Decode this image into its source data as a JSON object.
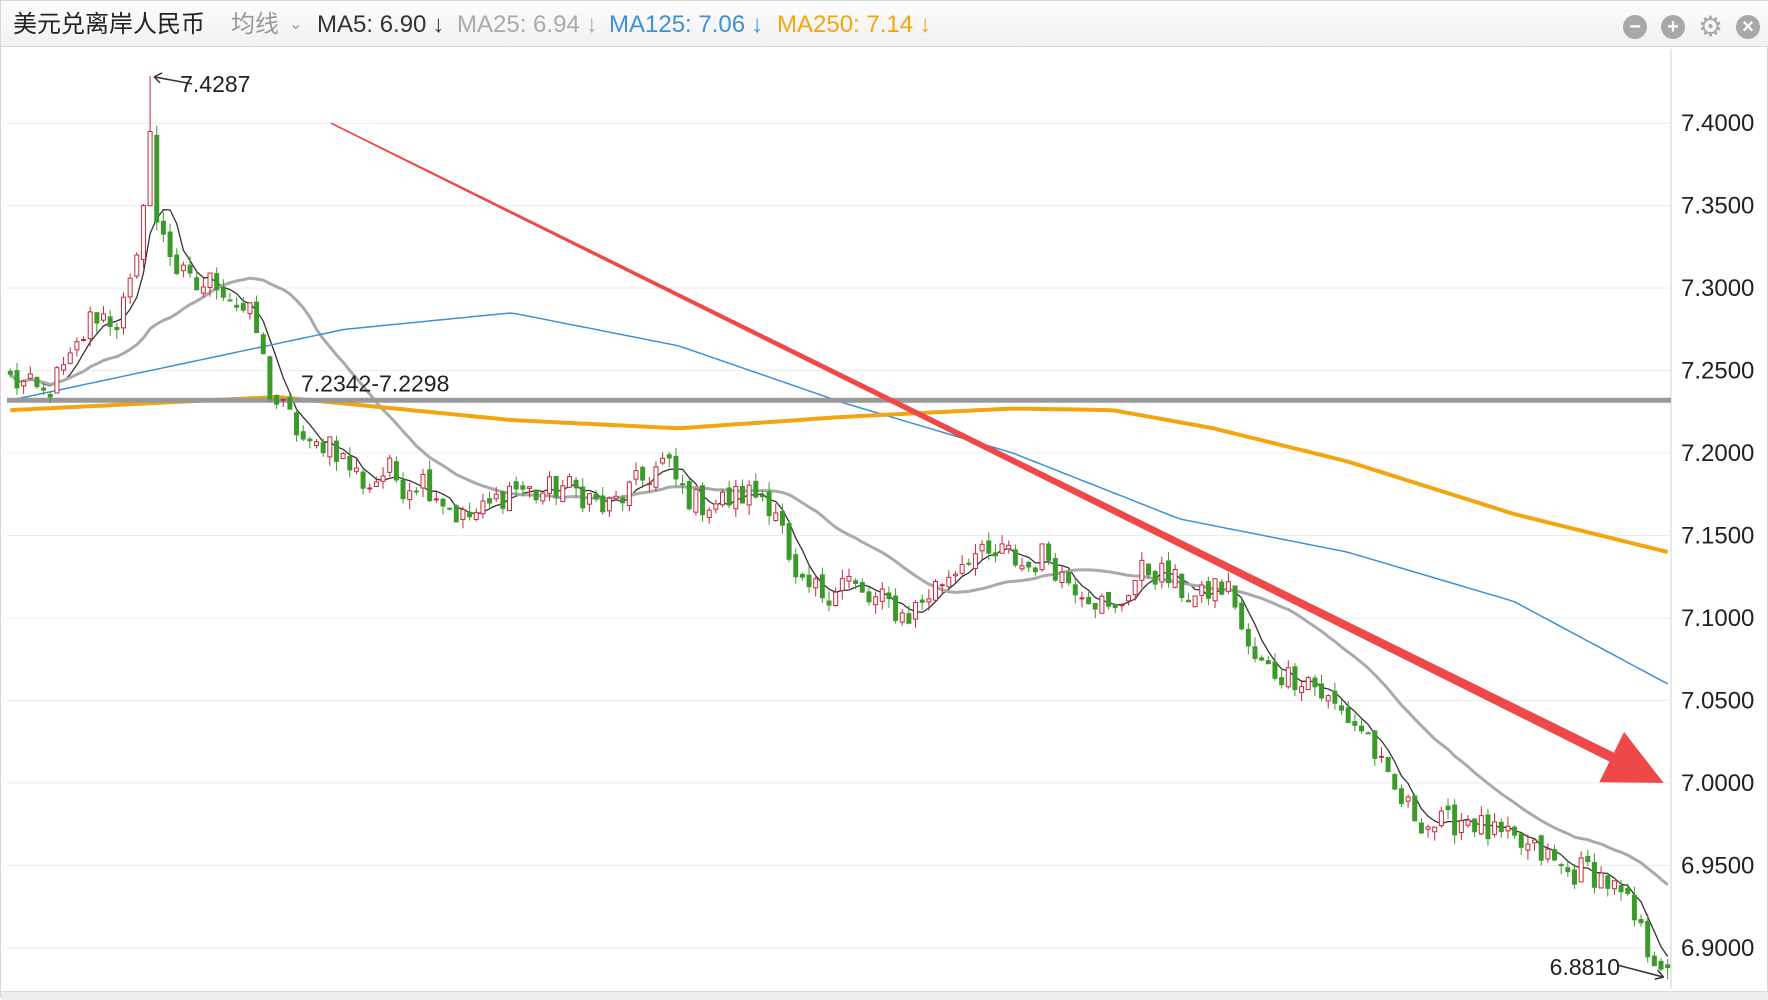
{
  "header": {
    "title": "美元兑离岸人民币",
    "indicator": "均线",
    "ma": [
      {
        "label": "MA5:",
        "value": "6.90",
        "arrow": "↓",
        "color": "#333333"
      },
      {
        "label": "MA25:",
        "value": "6.94",
        "arrow": "↓",
        "color": "#a9aaa9"
      },
      {
        "label": "MA125:",
        "value": "7.06",
        "arrow": "↓",
        "color": "#3f8fd6"
      },
      {
        "label": "MA250:",
        "value": "7.14",
        "arrow": "↓",
        "color": "#f3a50f"
      }
    ],
    "buttons": [
      {
        "name": "minimize",
        "glyph": "−"
      },
      {
        "name": "expand",
        "glyph": "+"
      },
      {
        "name": "settings",
        "glyph": "⚙"
      },
      {
        "name": "close",
        "glyph": "×"
      }
    ]
  },
  "chart_data": {
    "type": "candlestick",
    "title": "美元兑离岸人民币",
    "xlabel": "",
    "ylabel": "",
    "ylim": [
      6.875,
      7.445
    ],
    "y_ticks": [
      "7.4000",
      "7.3500",
      "7.3000",
      "7.2500",
      "7.2000",
      "7.1500",
      "7.1000",
      "7.0500",
      "7.0000",
      "6.9500",
      "6.9000"
    ],
    "y_tick_values": [
      7.4,
      7.35,
      7.3,
      7.25,
      7.2,
      7.15,
      7.1,
      7.05,
      7.0,
      6.95,
      6.9
    ],
    "grid": true,
    "y_axis_side": "right",
    "up_color": "#c8283c",
    "down_color": "#3c9a2a",
    "n_bars": 250,
    "close_anchors": [
      [
        0,
        7.245
      ],
      [
        10,
        7.235
      ],
      [
        18,
        7.255
      ],
      [
        25,
        7.285
      ],
      [
        32,
        7.28
      ],
      [
        36,
        7.3
      ],
      [
        40,
        7.33
      ],
      [
        42,
        7.39
      ],
      [
        45,
        7.34
      ],
      [
        50,
        7.31
      ],
      [
        55,
        7.3
      ],
      [
        62,
        7.305
      ],
      [
        68,
        7.29
      ],
      [
        73,
        7.28
      ],
      [
        78,
        7.235
      ],
      [
        84,
        7.22
      ],
      [
        90,
        7.2
      ],
      [
        95,
        7.21
      ],
      [
        100,
        7.195
      ],
      [
        107,
        7.18
      ],
      [
        113,
        7.19
      ],
      [
        118,
        7.18
      ],
      [
        123,
        7.185
      ],
      [
        128,
        7.175
      ],
      [
        135,
        7.16
      ],
      [
        142,
        7.165
      ],
      [
        150,
        7.18
      ],
      [
        158,
        7.175
      ],
      [
        165,
        7.18
      ],
      [
        172,
        7.175
      ],
      [
        178,
        7.165
      ],
      [
        184,
        7.175
      ],
      [
        190,
        7.185
      ],
      [
        196,
        7.195
      ],
      [
        200,
        7.18
      ],
      [
        205,
        7.17
      ],
      [
        212,
        7.17
      ],
      [
        220,
        7.175
      ],
      [
        225,
        7.175
      ],
      [
        230,
        7.165
      ],
      [
        233,
        7.13
      ],
      [
        236,
        7.115
      ],
      [
        240,
        7.118
      ],
      [
        244,
        7.115
      ],
      [
        250,
        7.125
      ],
      [
        256,
        7.11
      ],
      [
        262,
        7.11
      ],
      [
        268,
        7.1
      ],
      [
        275,
        7.115
      ],
      [
        280,
        7.125
      ],
      [
        287,
        7.14
      ],
      [
        292,
        7.135
      ],
      [
        298,
        7.14
      ],
      [
        304,
        7.13
      ],
      [
        310,
        7.14
      ],
      [
        315,
        7.125
      ],
      [
        320,
        7.12
      ],
      [
        326,
        7.11
      ],
      [
        330,
        7.1
      ],
      [
        335,
        7.12
      ],
      [
        340,
        7.13
      ],
      [
        346,
        7.125
      ],
      [
        352,
        7.115
      ],
      [
        356,
        7.11
      ],
      [
        360,
        7.12
      ],
      [
        366,
        7.115
      ],
      [
        370,
        7.08
      ],
      [
        375,
        7.07
      ],
      [
        382,
        7.065
      ],
      [
        388,
        7.065
      ],
      [
        394,
        7.05
      ],
      [
        400,
        7.04
      ],
      [
        406,
        7.03
      ],
      [
        412,
        7.0
      ],
      [
        418,
        6.985
      ],
      [
        424,
        6.975
      ],
      [
        430,
        6.975
      ],
      [
        436,
        6.98
      ],
      [
        442,
        6.97
      ],
      [
        448,
        6.965
      ],
      [
        454,
        6.96
      ],
      [
        460,
        6.955
      ],
      [
        466,
        6.945
      ],
      [
        472,
        6.948
      ],
      [
        478,
        6.94
      ],
      [
        484,
        6.925
      ],
      [
        490,
        6.9
      ],
      [
        496,
        6.888
      ]
    ],
    "annotations": [
      {
        "type": "high",
        "text": "7.4287",
        "value": 7.4287
      },
      {
        "type": "low",
        "text": "6.8810",
        "value": 6.881
      },
      {
        "type": "hline",
        "text": "7.2342-7.2298",
        "value": 7.232,
        "color": "#999999"
      }
    ],
    "ma_lines": [
      {
        "name": "MA5",
        "color": "#333333",
        "width": 1.3
      },
      {
        "name": "MA25",
        "color": "#a9aaa9",
        "width": 3
      },
      {
        "name": "MA125",
        "color": "#3f8fd6",
        "width": 1.5,
        "points": [
          [
            0,
            7.232
          ],
          [
            100,
            7.275
          ],
          [
            150,
            7.285
          ],
          [
            200,
            7.265
          ],
          [
            250,
            7.23
          ],
          [
            300,
            7.2
          ],
          [
            350,
            7.16
          ],
          [
            400,
            7.14
          ],
          [
            450,
            7.11
          ],
          [
            496,
            7.06
          ]
        ]
      },
      {
        "name": "MA250",
        "color": "#f3a50f",
        "width": 4,
        "points": [
          [
            0,
            7.226
          ],
          [
            80,
            7.234
          ],
          [
            150,
            7.22
          ],
          [
            200,
            7.215
          ],
          [
            250,
            7.222
          ],
          [
            300,
            7.227
          ],
          [
            330,
            7.226
          ],
          [
            360,
            7.215
          ],
          [
            400,
            7.195
          ],
          [
            450,
            7.163
          ],
          [
            496,
            7.14
          ]
        ]
      }
    ],
    "trend_arrow": {
      "from": [
        96,
        7.4
      ],
      "to": [
        496,
        7.0
      ],
      "color": "#ef4848"
    }
  }
}
